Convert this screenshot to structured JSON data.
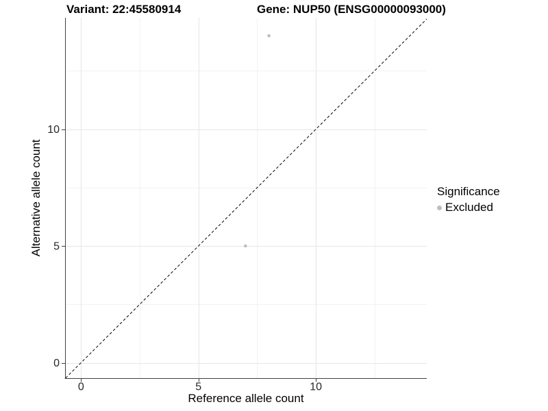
{
  "title": {
    "variant": "Variant: 22:45580914",
    "gene": "Gene: NUP50 (ENSG00000093000)"
  },
  "axes": {
    "x_label": "Reference allele count",
    "y_label": "Alternative allele count"
  },
  "legend": {
    "title": "Significance",
    "entries": [
      {
        "label": "Excluded",
        "color": "#bebebe"
      }
    ]
  },
  "chart_data": {
    "type": "scatter",
    "title_left": "Variant: 22:45580914",
    "title_right": "Gene: NUP50 (ENSG00000093000)",
    "xlabel": "Reference allele count",
    "ylabel": "Alternative allele count",
    "xlim": [
      -0.68,
      14.72
    ],
    "ylim": [
      -0.66,
      14.77
    ],
    "x_ticks": [
      0,
      5,
      10
    ],
    "y_ticks": [
      0,
      5,
      10
    ],
    "x_minor_ticks": [
      2.5,
      7.5,
      12.5
    ],
    "y_minor_ticks": [
      2.5,
      7.5,
      12.5
    ],
    "grid": "major+minor",
    "legend_position": "right",
    "reference_line": {
      "type": "identity",
      "slope": 1,
      "intercept": 0,
      "style": "dashed",
      "color": "#000000"
    },
    "series": [
      {
        "name": "Excluded",
        "color": "#bebebe",
        "marker": "circle",
        "points": [
          [
            8,
            14
          ],
          [
            7,
            5
          ]
        ]
      }
    ]
  },
  "colors": {
    "background": "#ffffff",
    "grid_major": "#e6e6e6",
    "grid_minor": "#f2f2f2",
    "axis_line": "#3f3f3f",
    "tick_text": "#262626",
    "point": "#bebebe",
    "reference_line": "#000000"
  }
}
